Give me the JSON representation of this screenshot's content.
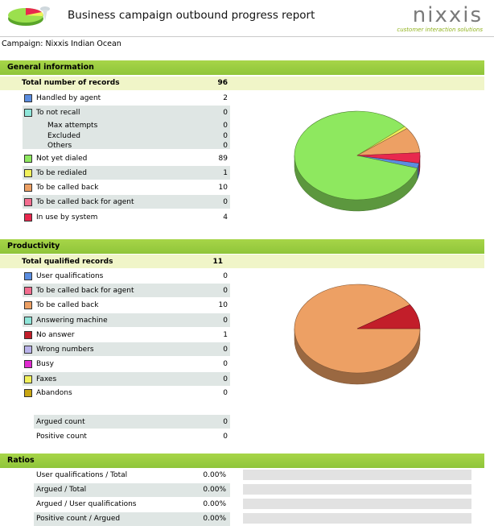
{
  "header": {
    "title": "Business campaign outbound progress report",
    "brand_name": "nixxis",
    "brand_tagline": "customer interaction solutions"
  },
  "campaign_label": "Campaign: Nixxis Indian Ocean",
  "general": {
    "section_title": "General information",
    "total_label": "Total number of records",
    "total_value": "96",
    "rows": [
      {
        "label": "Handled by agent",
        "value": "2",
        "color": "#5b8de0"
      },
      {
        "label": "To not recall",
        "value": "0",
        "color": "#8fe6d9"
      },
      {
        "label": "Max attempts",
        "value": "0"
      },
      {
        "label": "Excluded",
        "value": "0"
      },
      {
        "label": "Others",
        "value": "0"
      },
      {
        "label": "Not yet dialed",
        "value": "89",
        "color": "#8ee85f"
      },
      {
        "label": "To be redialed",
        "value": "1",
        "color": "#f1f15b"
      },
      {
        "label": "To be called back",
        "value": "10",
        "color": "#eda064"
      },
      {
        "label": "To be called back for agent",
        "value": "0",
        "color": "#f36d8f"
      },
      {
        "label": "In use by system",
        "value": "4",
        "color": "#e8284e"
      }
    ]
  },
  "productivity": {
    "section_title": "Productivity",
    "total_label": "Total qualified records",
    "total_value": "11",
    "rows": [
      {
        "label": "User qualifications",
        "value": "0",
        "color": "#5b8de0"
      },
      {
        "label": "To be called back for agent",
        "value": "0",
        "color": "#f36d8f"
      },
      {
        "label": "To be called back",
        "value": "10",
        "color": "#eda064"
      },
      {
        "label": "Answering machine",
        "value": "0",
        "color": "#8fe6d9"
      },
      {
        "label": "No answer",
        "value": "1",
        "color": "#c21e2a"
      },
      {
        "label": "Wrong numbers",
        "value": "0",
        "color": "#b9b3ea"
      },
      {
        "label": "Busy",
        "value": "0",
        "color": "#e02ad0"
      },
      {
        "label": "Faxes",
        "value": "0",
        "color": "#f1f15b"
      },
      {
        "label": "Abandons",
        "value": "0",
        "color": "#c8a512"
      }
    ],
    "argued_label": "Argued count",
    "argued_value": "0",
    "positive_label": "Positive count",
    "positive_value": "0"
  },
  "ratios": {
    "section_title": "Ratios",
    "rows": [
      {
        "label": "User qualifications / Total",
        "value": "0.00%",
        "fill": 0
      },
      {
        "label": "Argued / Total",
        "value": "0.00%",
        "fill": 0
      },
      {
        "label": "Argued / User qualifications",
        "value": "0.00%",
        "fill": 0
      },
      {
        "label": "Positive count / Argued",
        "value": "0.00%",
        "fill": 0
      }
    ]
  },
  "chart_data": [
    {
      "type": "pie",
      "slices": [
        {
          "label": "Handled by agent",
          "value": 2,
          "color": "#5b8de0"
        },
        {
          "label": "Not yet dialed",
          "value": 89,
          "color": "#8ee85f"
        },
        {
          "label": "To be redialed",
          "value": 1,
          "color": "#f1f15b"
        },
        {
          "label": "To be called back",
          "value": 10,
          "color": "#eda064"
        },
        {
          "label": "In use by system",
          "value": 4,
          "color": "#e8284e"
        }
      ]
    },
    {
      "type": "pie",
      "slices": [
        {
          "label": "To be called back",
          "value": 10,
          "color": "#eda064"
        },
        {
          "label": "No answer",
          "value": 1,
          "color": "#c21e2a"
        }
      ]
    }
  ]
}
